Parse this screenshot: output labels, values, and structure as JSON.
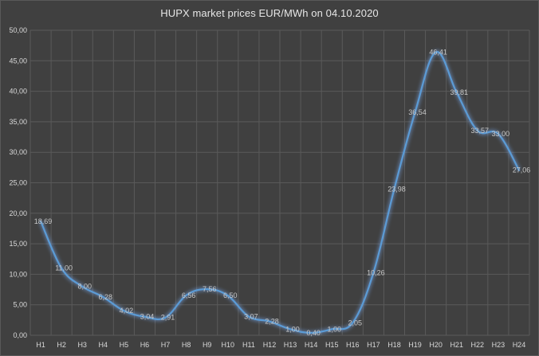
{
  "chart_data": {
    "type": "line",
    "title": "HUPX market prices EUR/MWh on 04.10.2020",
    "xlabel": "",
    "ylabel": "",
    "categories": [
      "H1",
      "H2",
      "H3",
      "H4",
      "H5",
      "H6",
      "H7",
      "H8",
      "H9",
      "H10",
      "H11",
      "H12",
      "H13",
      "H14",
      "H15",
      "H16",
      "H17",
      "H18",
      "H19",
      "H20",
      "H21",
      "H22",
      "H23",
      "H24"
    ],
    "series": [
      {
        "values": [
          18.69,
          11.0,
          8.0,
          6.28,
          4.02,
          3.04,
          2.91,
          6.56,
          7.56,
          6.5,
          3.07,
          2.28,
          1.0,
          0.4,
          1.0,
          2.05,
          10.26,
          23.98,
          36.54,
          46.41,
          39.81,
          33.57,
          33.0,
          27.06
        ],
        "labels": [
          "18,69",
          "11,00",
          "8,00",
          "6,28",
          "4,02",
          "3,04",
          "2,91",
          "6,56",
          "7,56",
          "6,50",
          "3,07",
          "2,28",
          "1,00",
          "0,40",
          "1,00",
          "2,05",
          "10,26",
          "23,98",
          "36,54",
          "46,41",
          "39,81",
          "33,57",
          "33,00",
          "27,06"
        ]
      }
    ],
    "ylim": [
      0,
      50
    ],
    "y_ticks": [
      "0,00",
      "5,00",
      "10,00",
      "15,00",
      "20,00",
      "25,00",
      "30,00",
      "35,00",
      "40,00",
      "45,00",
      "50,00"
    ],
    "y_tick_values": [
      0,
      5,
      10,
      15,
      20,
      25,
      30,
      35,
      40,
      45,
      50
    ],
    "grid": true,
    "legend": "none",
    "colors": {
      "background": "#404040",
      "grid": "#5a5a5a",
      "line": "#5b9bd5",
      "text": "#d9d9d9"
    }
  }
}
